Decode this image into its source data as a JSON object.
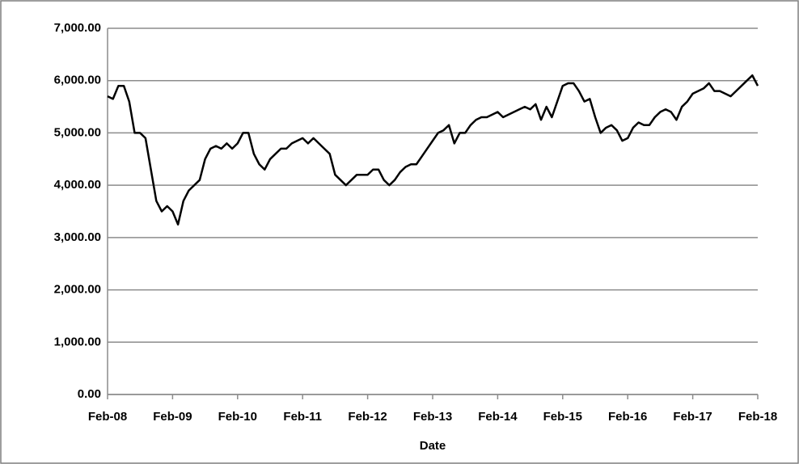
{
  "chart_data": {
    "type": "line",
    "x_label": "Date",
    "categories": [
      "Feb-08",
      null,
      null,
      null,
      null,
      null,
      null,
      null,
      null,
      null,
      null,
      null,
      "Feb-09",
      null,
      null,
      null,
      null,
      null,
      null,
      null,
      null,
      null,
      null,
      null,
      "Feb-10",
      null,
      null,
      null,
      null,
      null,
      null,
      null,
      null,
      null,
      null,
      null,
      "Feb-11",
      null,
      null,
      null,
      null,
      null,
      null,
      null,
      null,
      null,
      null,
      null,
      "Feb-12",
      null,
      null,
      null,
      null,
      null,
      null,
      null,
      null,
      null,
      null,
      null,
      "Feb-13",
      null,
      null,
      null,
      null,
      null,
      null,
      null,
      null,
      null,
      null,
      null,
      "Feb-14",
      null,
      null,
      null,
      null,
      null,
      null,
      null,
      null,
      null,
      null,
      null,
      "Feb-15",
      null,
      null,
      null,
      null,
      null,
      null,
      null,
      null,
      null,
      null,
      null,
      "Feb-16",
      null,
      null,
      null,
      null,
      null,
      null,
      null,
      null,
      null,
      null,
      null,
      "Feb-17",
      null,
      null,
      null,
      null,
      null,
      null,
      null,
      null,
      null,
      null,
      null,
      "Feb-18"
    ],
    "values": [
      5700,
      5650,
      5900,
      5900,
      5600,
      5000,
      5000,
      4900,
      4300,
      3700,
      3500,
      3600,
      3500,
      3250,
      3700,
      3900,
      4000,
      4100,
      4500,
      4700,
      4750,
      4700,
      4800,
      4700,
      4800,
      5000,
      5000,
      4600,
      4400,
      4300,
      4500,
      4600,
      4700,
      4700,
      4800,
      4850,
      4900,
      4800,
      4900,
      4800,
      4700,
      4600,
      4200,
      4100,
      4000,
      4100,
      4200,
      4200,
      4200,
      4300,
      4300,
      4100,
      4000,
      4100,
      4250,
      4350,
      4400,
      4400,
      4550,
      4700,
      4850,
      5000,
      5050,
      5150,
      4800,
      5000,
      5000,
      5150,
      5250,
      5300,
      5300,
      5350,
      5400,
      5300,
      5350,
      5400,
      5450,
      5500,
      5450,
      5550,
      5250,
      5500,
      5300,
      5600,
      5900,
      5950,
      5950,
      5800,
      5600,
      5650,
      5300,
      5000,
      5100,
      5150,
      5050,
      4850,
      4900,
      5100,
      5200,
      5150,
      5150,
      5300,
      5400,
      5450,
      5400,
      5250,
      5500,
      5600,
      5750,
      5800,
      5850,
      5950,
      5800,
      5800,
      5750,
      5700,
      5800,
      5900,
      6000,
      6100,
      5900
    ],
    "color": "#000000",
    "ylim": [
      0,
      7000
    ],
    "yticks": [
      {
        "value": 0,
        "label": "0.00"
      },
      {
        "value": 1000,
        "label": "1,000.00"
      },
      {
        "value": 2000,
        "label": "2,000.00"
      },
      {
        "value": 3000,
        "label": "3,000.00"
      },
      {
        "value": 4000,
        "label": "4,000.00"
      },
      {
        "value": 5000,
        "label": "5,000.00"
      },
      {
        "value": 6000,
        "label": "6,000.00"
      },
      {
        "value": 7000,
        "label": "7,000.00"
      }
    ],
    "grid": true
  }
}
